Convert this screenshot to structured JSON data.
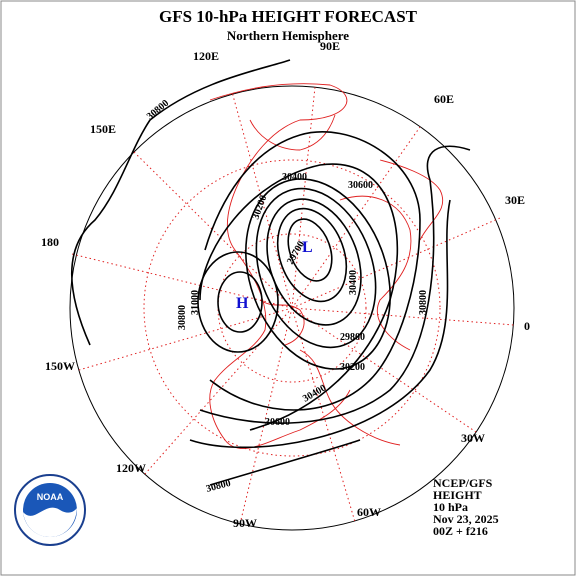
{
  "title": "GFS 10-hPa HEIGHT FORECAST",
  "subtitle": "Northern Hemisphere",
  "longitude_labels": [
    "90E",
    "120E",
    "60E",
    "150E",
    "30E",
    "180",
    "0",
    "150W",
    "30W",
    "120W",
    "60W",
    "90W"
  ],
  "contour_labels": [
    "30800",
    "30400",
    "30600",
    "30200",
    "29700",
    "31000",
    "30800",
    "30400",
    "30800",
    "29800",
    "30200",
    "30400",
    "30600",
    "30800"
  ],
  "centers": {
    "low": "L",
    "high": "H"
  },
  "logo": "NOAA",
  "info": [
    "NCEP/GFS",
    "HEIGHT",
    "10 hPa",
    "Nov 23, 2025",
    "00Z + f216"
  ]
}
